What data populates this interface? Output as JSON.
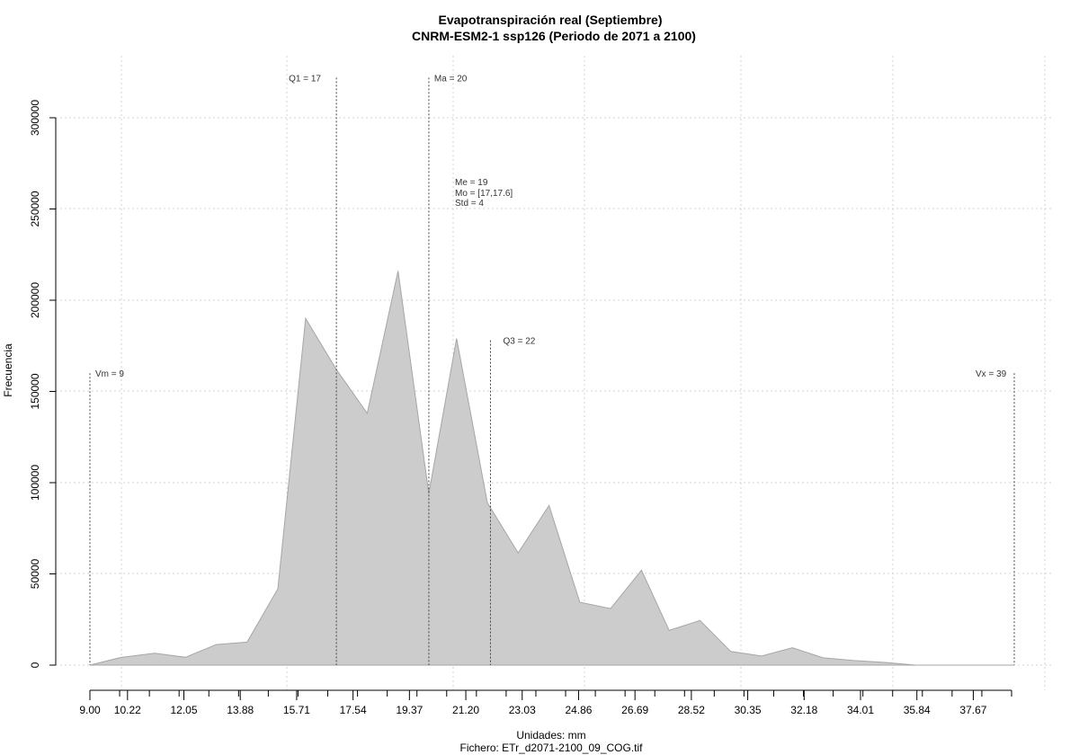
{
  "chart_data": {
    "type": "area",
    "title": "Evapotranspiración real (Septiembre)",
    "subtitle": "CNRM-ESM2-1 ssp126 (Periodo de 2071 a 2100)",
    "xlabel": "Unidades: mm",
    "caption": "Fichero: ETr_d2071-2100_09_COG.tif",
    "ylabel": "Frecuencia",
    "x_ticks": [
      "9.00",
      "10.22",
      "12.05",
      "13.88",
      "15.71",
      "17.54",
      "19.37",
      "21.20",
      "23.03",
      "24.86",
      "26.69",
      "28.52",
      "30.35",
      "32.18",
      "34.01",
      "35.84",
      "37.67"
    ],
    "y_ticks": [
      "0",
      "50000",
      "100000",
      "150000",
      "200000",
      "250000",
      "300000"
    ],
    "xlim": [
      9,
      39
    ],
    "ylim": [
      0,
      300000
    ],
    "grid": true,
    "fill_color": "#cccccc",
    "line_color": "#a6a6a6",
    "x": [
      9.0,
      10.0,
      11.1,
      12.1,
      13.1,
      14.1,
      15.1,
      16.0,
      17.0,
      18.0,
      19.0,
      20.0,
      20.9,
      21.9,
      22.9,
      23.9,
      24.9,
      25.9,
      26.9,
      27.8,
      28.8,
      29.8,
      30.8,
      31.8,
      32.8,
      33.8,
      34.8,
      35.8,
      36.8,
      37.8,
      38.7,
      39.0
    ],
    "y": [
      0,
      4200,
      6500,
      4300,
      11300,
      12600,
      41800,
      190000,
      162000,
      138000,
      216000,
      94000,
      179000,
      89000,
      61500,
      87500,
      34500,
      31000,
      52000,
      19000,
      24500,
      7500,
      5000,
      9500,
      4000,
      2500,
      1500,
      0,
      0,
      0,
      0,
      0
    ],
    "annotations": [
      {
        "label": "Vm = 9",
        "x": 9,
        "y": 160000
      },
      {
        "label": "Q1 = 17",
        "x": 17,
        "y": 322000
      },
      {
        "label": "Ma = 20",
        "x": 20,
        "y": 322000
      },
      {
        "label": "Q3 = 22",
        "x": 22,
        "y": 178000
      },
      {
        "label": "Vx = 39",
        "x": 39,
        "y": 160000
      }
    ],
    "stats_text": [
      "Me = 19",
      "Mo = [17,17.6]",
      "Std = 4"
    ]
  }
}
